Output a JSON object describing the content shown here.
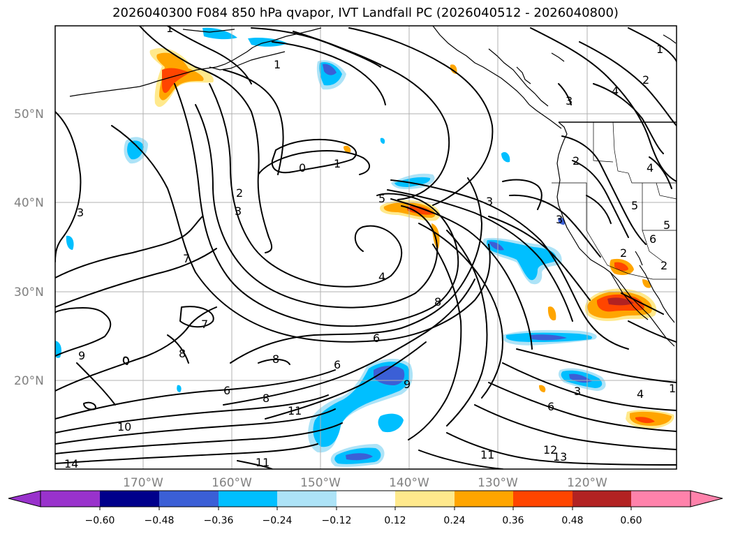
{
  "title": "2026040300 F084 850 hPa qvapor, IVT Landfall PC (2026040512 - 2026040800)",
  "lat_labels": [
    "50°N",
    "40°N",
    "30°N",
    "20°N"
  ],
  "lon_labels": [
    "170°W",
    "160°W",
    "150°W",
    "140°W",
    "130°W",
    "120°W"
  ],
  "colorbar": {
    "ticks": [
      "−0.60",
      "−0.48",
      "−0.36",
      "−0.24",
      "−0.12",
      "0.12",
      "0.24",
      "0.36",
      "0.48",
      "0.60"
    ],
    "colors": [
      "#9932cc",
      "#00008b",
      "#3b5fd6",
      "#00bfff",
      "#ade3f7",
      "#ffffff",
      "#ffe98c",
      "#ffa500",
      "#ff4500",
      "#b22222",
      "#ff82ab",
      "#ff82ab"
    ]
  },
  "contour_labels": [
    "1",
    "1",
    "1",
    "0",
    "1",
    "2",
    "3",
    "3",
    "3",
    "5",
    "7",
    "4",
    "8",
    "6",
    "7",
    "9",
    "8",
    "8",
    "6",
    "8",
    "6",
    "9",
    "11",
    "10",
    "14",
    "11",
    "11",
    "12",
    "13",
    "6",
    "4",
    "3",
    "4",
    "2",
    "3",
    "4",
    "5",
    "5",
    "6",
    "2",
    "3",
    "2",
    "2",
    "1"
  ],
  "color_legend": {
    "negative": "blue shades",
    "positive": "orange/red shades"
  }
}
